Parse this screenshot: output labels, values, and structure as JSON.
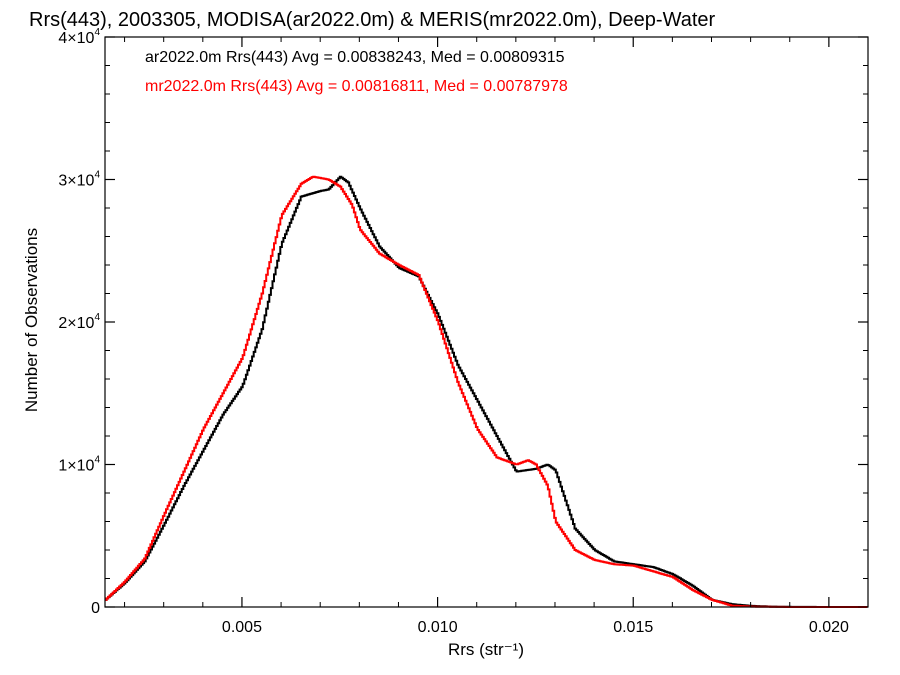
{
  "chart_data": {
    "type": "line",
    "title": "Rrs(443), 2003305, MODISA(ar2022.0m) & MERIS(mr2022.0m), Deep-Water",
    "xlabel": "Rrs (str⁻¹)",
    "ylabel": "Number of Observations",
    "xlim": [
      0.0015,
      0.021
    ],
    "ylim": [
      0,
      40000
    ],
    "xticks": [
      0.005,
      0.01,
      0.015,
      0.02
    ],
    "xtick_labels": [
      "0.005",
      "0.010",
      "0.015",
      "0.020"
    ],
    "yticks": [
      0,
      10000,
      20000,
      30000,
      40000
    ],
    "ytick_labels": [
      {
        "mant": "0",
        "exp": ""
      },
      {
        "mant": "1×10",
        "exp": "4"
      },
      {
        "mant": "2×10",
        "exp": "4"
      },
      {
        "mant": "3×10",
        "exp": "4"
      },
      {
        "mant": "4×10",
        "exp": "4"
      }
    ],
    "annotations": [
      {
        "text": "ar2022.0m Rrs(443) Avg = 0.00838243, Med = 0.00809315",
        "color": "#000000"
      },
      {
        "text": "mr2022.0m Rrs(443) Avg = 0.00816811, Med = 0.00787978",
        "color": "#ff0000"
      }
    ],
    "series": [
      {
        "color": "#000000",
        "x": [
          0.0015,
          0.002,
          0.0025,
          0.003,
          0.0035,
          0.004,
          0.0045,
          0.005,
          0.0055,
          0.006,
          0.0065,
          0.007,
          0.0072,
          0.0075,
          0.0077,
          0.008,
          0.0085,
          0.009,
          0.0095,
          0.01,
          0.0105,
          0.011,
          0.0115,
          0.012,
          0.0125,
          0.0128,
          0.013,
          0.0135,
          0.014,
          0.0145,
          0.015,
          0.0155,
          0.016,
          0.0165,
          0.017,
          0.0175,
          0.018,
          0.0185,
          0.019,
          0.02,
          0.021
        ],
        "y": [
          500,
          1700,
          3200,
          5800,
          8500,
          11000,
          13500,
          15500,
          19500,
          25500,
          28800,
          29200,
          29300,
          30200,
          29800,
          28000,
          25300,
          23800,
          23200,
          20500,
          17000,
          14500,
          12000,
          9500,
          9700,
          10000,
          9600,
          5500,
          4000,
          3200,
          3000,
          2800,
          2300,
          1500,
          500,
          200,
          80,
          30,
          10,
          0,
          0
        ]
      },
      {
        "color": "#ff0000",
        "x": [
          0.0015,
          0.002,
          0.0025,
          0.003,
          0.0035,
          0.004,
          0.0045,
          0.005,
          0.0055,
          0.006,
          0.0065,
          0.0068,
          0.007,
          0.0072,
          0.0075,
          0.0078,
          0.008,
          0.0085,
          0.009,
          0.0095,
          0.01,
          0.0105,
          0.011,
          0.0115,
          0.012,
          0.0123,
          0.0125,
          0.0128,
          0.013,
          0.0135,
          0.014,
          0.0145,
          0.015,
          0.0155,
          0.016,
          0.0165,
          0.017,
          0.0175,
          0.018,
          0.0185,
          0.019,
          0.02,
          0.021
        ],
        "y": [
          500,
          1800,
          3400,
          6500,
          9500,
          12500,
          15000,
          17500,
          22000,
          27500,
          29700,
          30200,
          30100,
          30000,
          29500,
          28200,
          26500,
          24800,
          24000,
          23300,
          20000,
          15800,
          12500,
          10500,
          10000,
          10300,
          10000,
          8500,
          6000,
          4000,
          3300,
          3000,
          2900,
          2500,
          2100,
          1200,
          500,
          100,
          30,
          10,
          0,
          0,
          0
        ]
      }
    ]
  }
}
